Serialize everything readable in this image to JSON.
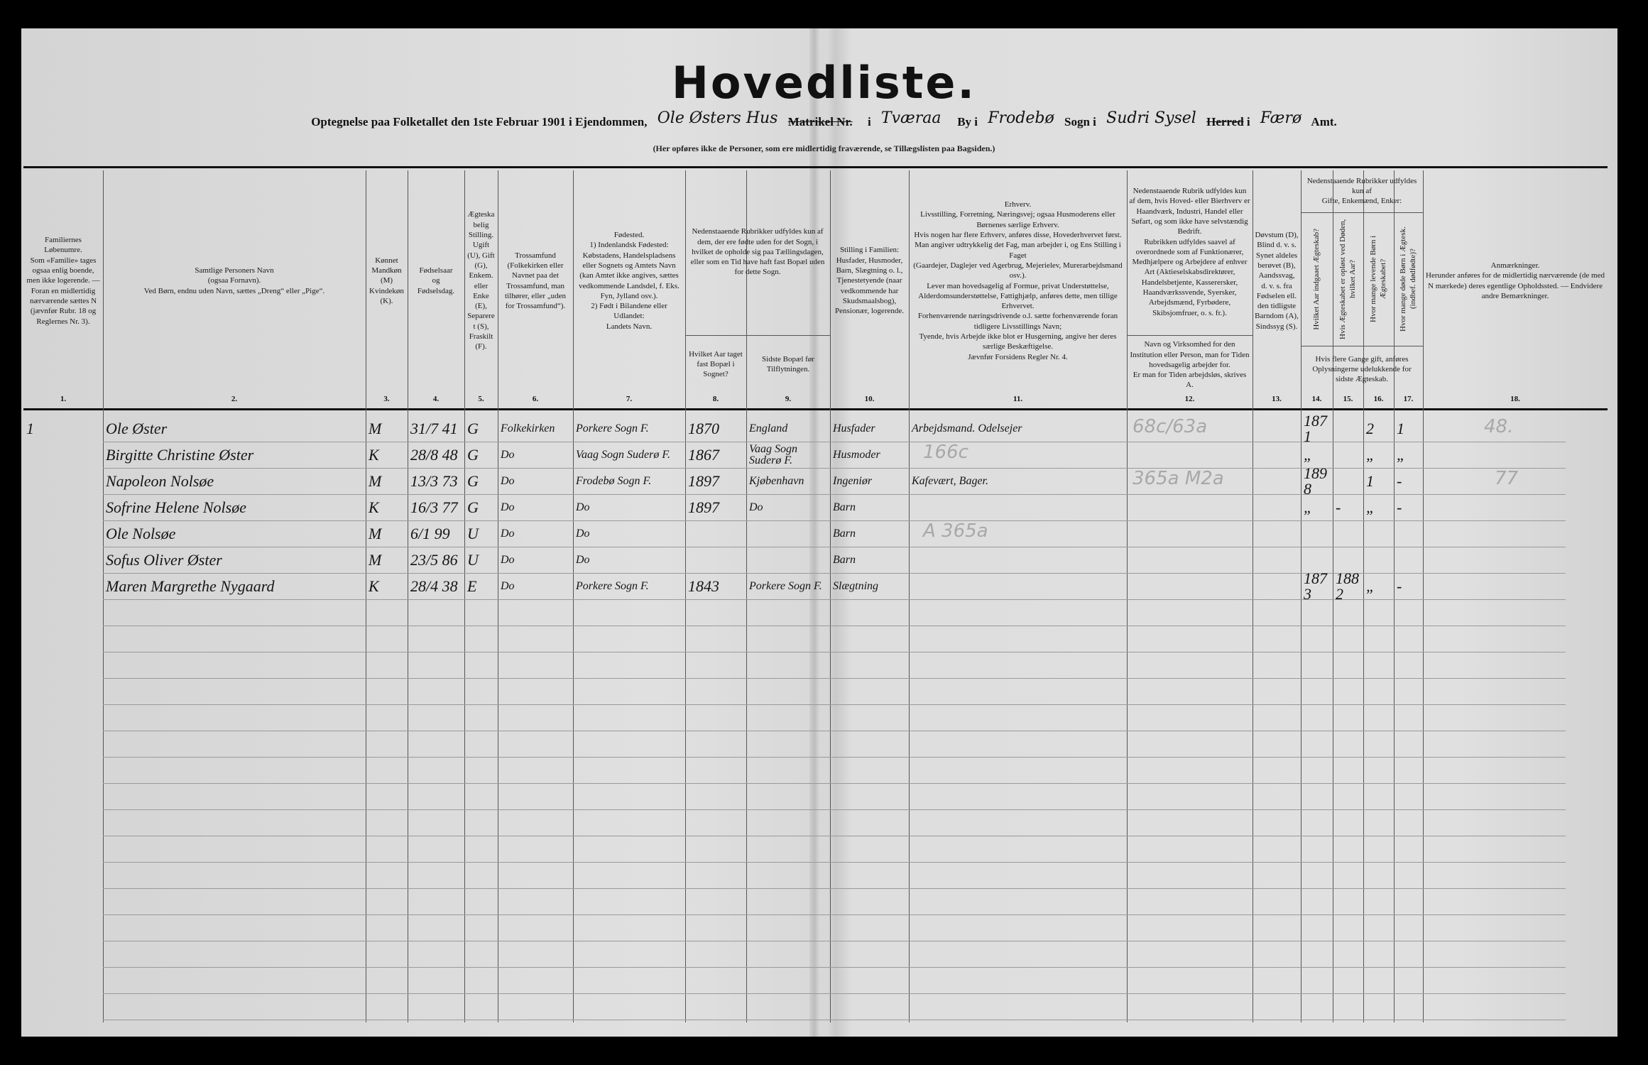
{
  "document": {
    "title": "Hovedliste.",
    "subline": {
      "prefix": "Optegnelse paa Folketallet den 1ste Februar 1901 i Ejendommen,",
      "property": "Ole Østers Hus",
      "struck1": "Matrikel Nr.",
      "i1": "i",
      "place": "Tværaa",
      "by": "By i",
      "parish": "Frodebø",
      "sogn": "Sogn i",
      "district": "Sudri Sysel",
      "struck2": "Herred",
      "i2": "i",
      "county": "Færø",
      "amt": "Amt."
    },
    "note": "(Her opføres ikke de Personer, som ere midlertidig fraværende, se Tillægslisten paa Bagsiden.)"
  },
  "columns": [
    {
      "num": "1.",
      "header": "Familiernes Løbenumre.\nSom «Familie» tages ogsaa enlig boende, men ikke logerende. — Foran en midlertidig nærværende sættes N (jævnfør Rubr. 18 og Reglernes Nr. 3)."
    },
    {
      "num": "2.",
      "header": "Samtlige Personers Navn\n(ogsaa Fornavn).\nVed Børn, endnu uden Navn, sættes „Dreng“ eller „Pige“."
    },
    {
      "num": "3.",
      "header": "Kønnet\nMandkøn (M)\nKvindekøn (K)."
    },
    {
      "num": "4.",
      "header": "Fødselsaar\nog\nFødselsdag."
    },
    {
      "num": "5.",
      "header": "Ægteskabelig Stilling.\nUgift (U), Gift (G), Enkem. eller Enke (E), Separeret (S), Fraskilt (F)."
    },
    {
      "num": "6.",
      "header": "Trossamfund\n(Folkekirken eller Navnet paa det Trossamfund, man tilhører, eller „uden for Trossamfund“)."
    },
    {
      "num": "7.",
      "header": "Fødested.\n1) Indenlandsk Fødested:\nKøbstadens, Handelspladsens eller Sognets og Amtets Navn (kan Amtet ikke angives, sættes vedkommende Landsdel, f. Eks. Fyn, Jylland osv.).\n2) Født i Bilandene eller Udlandet:\nLandets Navn."
    },
    {
      "num": "8.",
      "header": "Hvilket Aar taget fast Bopæl i Sognet?"
    },
    {
      "num": "9.",
      "header": "Sidste Bopæl før Tilflytningen."
    },
    {
      "num": "10.",
      "header": "Stilling i Familien:\nHusfader, Husmoder, Barn, Slægtning o. l., Tjenestetyende (naar vedkommende har Skudsmaalsbog), Pensionær, logerende."
    },
    {
      "num": "11.",
      "header": "Erhverv.\nLivsstilling, Forretning, Næringsvej; ogsaa Husmoderens eller Børnenes særlige Erhverv.\nHvis nogen har flere Erhverv, anføres disse, Hovederhvervet først.\nMan angiver udtrykkelig det Fag, man arbejder i, og Ens Stilling i Faget\n(Gaardejer, Daglejer ved Agerbrug, Mejerielev, Murerarbejdsmand osv.).\nLever man hovedsagelig af Formue, privat Understøttelse, Alderdomsunderstøttelse, Fattighjælp, anføres dette, men tillige Erhvervet.\nForhenværende næringsdrivende o.l. sætte forhenværende foran tidligere Livsstillings Navn;\nTyende, hvis Arbejde ikke blot er Husgerning, angive her deres særlige Beskæftigelse.\nJævnfør Forsidens Regler Nr. 4."
    },
    {
      "num": "12.",
      "header": "Nedenstaaende Rubrik udfyldes kun af dem, hvis Hoved- eller Bierhverv er Haandværk, Industri, Handel eller Søfart, og som ikke have selvstændig Bedrift.\nRubrikken udfyldes saavel af overordnede som af Funktionærer, Medhjælpere og Arbejdere af enhver Art (Aktieselskabsdirektører, Handelsbetjente, Kasserersker, Haandværkssvende, Syersker, Arbejdsmænd, Fyrbødere, Skibsjomfruer, o. s. fr.)."
    },
    {
      "num": "13.",
      "header": "Døvstum (D),\nBlind d. v. s. Synet aldeles berøvet (B),\nAandssvag, d. v. s. fra Fødselen ell. den tidligste Barndom (A),\nSindssyg (S)."
    },
    {
      "num": "14.",
      "header": "Hvilket Aar indgaaet Ægteskab?"
    },
    {
      "num": "15.",
      "header": "Hvis Ægteskabet er opløst ved Døden, hvilket Aar?"
    },
    {
      "num": "16.",
      "header": "Hvor mange levende Børn i Ægteskabet?"
    },
    {
      "num": "17.",
      "header": "Hvor mange døde Børn i Ægtesk. (indbef. dødfødte)?"
    },
    {
      "num": "18.",
      "header": "Anmærkninger.\nHerunder anføres for de midlertidig nærværende (de med N mærkede) deres egentlige Opholdssted. — Endvidere andre Bemærkninger."
    }
  ],
  "group_headers": {
    "col8_9": "Nedenstaaende Rubrikker udfyldes kun af dem, der ere fødte uden for det Sogn, i hvilket de opholde sig paa Tællingsdagen, eller som en Tid have haft fast Bopæl uden for dette Sogn.",
    "col12_lower": "Navn og Virksomhed for den Institution eller Person, man for Tiden hovedsagelig arbejder for.\nEr man for Tiden arbejdsløs, skrives A.",
    "col14_17_top": "Nedenstaaende Rubrikker udfyldes kun af\nGifte, Enkemænd, Enker:",
    "col14_17_bottom": "Hvis flere Gange gift, anføres Oplysningerne udelukkende for sidste Ægteskab."
  },
  "rows": [
    {
      "family": "1",
      "name": "Ole Øster",
      "sex": "M",
      "birth": "31/7 41",
      "marital": "G",
      "faith": "Folkekirken",
      "birthplace": "Porkere Sogn F.",
      "settled": "1870",
      "previous": "England",
      "position": "Husfader",
      "occupation": "Arbejdsmand. Odelsejer",
      "married_year": "1871",
      "dissolved": "",
      "living_children": "2",
      "dead_children": "1"
    },
    {
      "family": "",
      "name": "Birgitte Christine Øster",
      "sex": "K",
      "birth": "28/8 48",
      "marital": "G",
      "faith": "Do",
      "birthplace": "Vaag Sogn Suderø F.",
      "settled": "1867",
      "previous": "Vaag Sogn Suderø F.",
      "position": "Husmoder",
      "occupation": "",
      "married_year": "„",
      "dissolved": "",
      "living_children": "„",
      "dead_children": "„"
    },
    {
      "family": "",
      "name": "Napoleon Nolsøe",
      "sex": "M",
      "birth": "13/3 73",
      "marital": "G",
      "faith": "Do",
      "birthplace": "Frodebø Sogn F.",
      "settled": "1897",
      "previous": "Kjøbenhavn",
      "position": "Ingeniør",
      "occupation": "Kafevært, Bager.",
      "married_year": "1898",
      "dissolved": "",
      "living_children": "1",
      "dead_children": "-"
    },
    {
      "family": "",
      "name": "Sofrine Helene Nolsøe",
      "sex": "K",
      "birth": "16/3 77",
      "marital": "G",
      "faith": "Do",
      "birthplace": "Do",
      "settled": "1897",
      "previous": "Do",
      "position": "Barn",
      "occupation": "",
      "married_year": "„",
      "dissolved": "-",
      "living_children": "„",
      "dead_children": "-"
    },
    {
      "family": "",
      "name": "Ole Nolsøe",
      "sex": "M",
      "birth": "6/1 99",
      "marital": "U",
      "faith": "Do",
      "birthplace": "Do",
      "settled": "",
      "previous": "",
      "position": "Barn",
      "occupation": "",
      "married_year": "",
      "dissolved": "",
      "living_children": "",
      "dead_children": ""
    },
    {
      "family": "",
      "name": "Sofus Oliver Øster",
      "sex": "M",
      "birth": "23/5 86",
      "marital": "U",
      "faith": "Do",
      "birthplace": "Do",
      "settled": "",
      "previous": "",
      "position": "Barn",
      "occupation": "",
      "married_year": "",
      "dissolved": "",
      "living_children": "",
      "dead_children": ""
    },
    {
      "family": "",
      "name": "Maren Margrethe Nygaard",
      "sex": "K",
      "birth": "28/4 38",
      "marital": "E",
      "faith": "Do",
      "birthplace": "Porkere Sogn F.",
      "settled": "1843",
      "previous": "Porkere Sogn F.",
      "position": "Slægtning",
      "occupation": "",
      "married_year": "1873",
      "dissolved": "1882",
      "living_children": "„",
      "dead_children": "-"
    }
  ],
  "pencil_marks": [
    "68c/63a",
    "166c",
    "365a  M2a",
    "A 365a",
    "48.",
    "77"
  ]
}
